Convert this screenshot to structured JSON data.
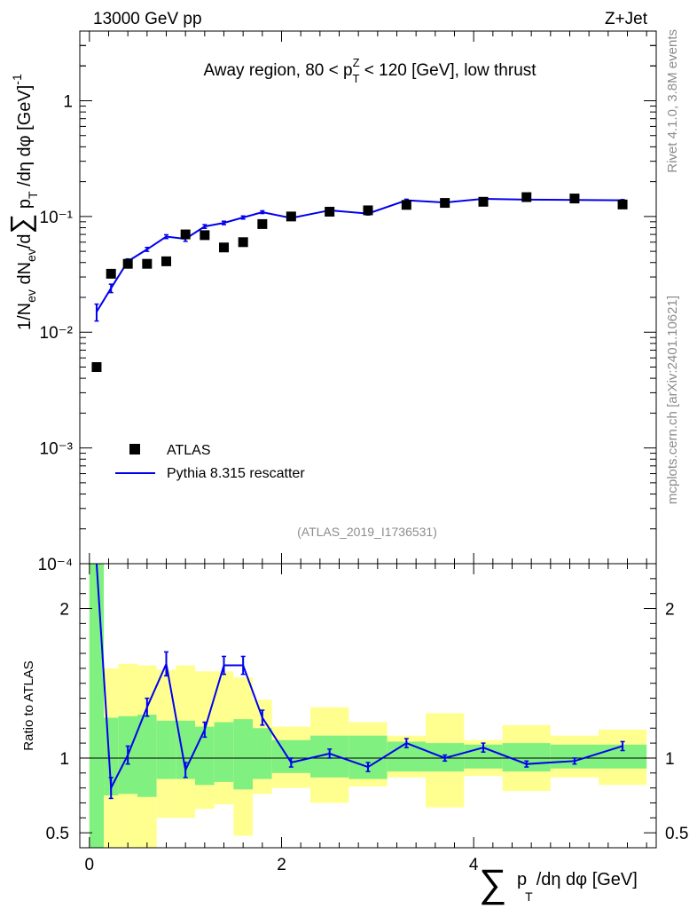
{
  "header": {
    "left": "13000 GeV pp",
    "right": "Z+Jet",
    "side_top": "Rivet 4.1.0,  3.8M events",
    "side_bottom": "mcplots.cern.ch [arXiv:2401.10621]"
  },
  "chart_data": {
    "type": "line",
    "title": "Away region, 80 < pZT < 120 [GeV], low thrust",
    "title_parts": {
      "pre": "Away region, 80 < p",
      "sup": "Z",
      "sub": "T",
      "post": " < 120 [GeV], low thrust"
    },
    "analysis_id": "(ATLAS_2019_I1736531)",
    "xlabel": "∑ pT/dη dφ [GeV]",
    "ylabel": "1/Nev dNev/d∑ pT/dη dφ [GeV]-1",
    "ratio_ylabel": "Ratio to ATLAS",
    "xlim": [
      -0.1,
      5.9
    ],
    "ylim": [
      0.0001,
      4
    ],
    "yscale": "log",
    "ratio_ylim": [
      0.4,
      2.3
    ],
    "x_ticks": [
      "0",
      "2",
      "4"
    ],
    "y_ticks": [
      "10⁻⁴",
      "10⁻³",
      "10⁻²",
      "10⁻¹",
      "1"
    ],
    "ratio_ticks": [
      "0.5",
      "1",
      "2"
    ],
    "legend": [
      "ATLAS",
      "Pythia 8.315 rescatter"
    ],
    "legend_position": "lower-left",
    "colors": {
      "data": "#000000",
      "mc": "#0000ee",
      "band_inner": "#80f080",
      "band_outer": "#ffff90"
    },
    "bin_edges": [
      0.0,
      0.15,
      0.3,
      0.5,
      0.7,
      0.9,
      1.1,
      1.3,
      1.5,
      1.7,
      1.9,
      2.3,
      2.7,
      3.1,
      3.5,
      3.9,
      4.3,
      4.8,
      5.3,
      5.8
    ],
    "series": [
      {
        "name": "ATLAS",
        "marker": "square",
        "x": [
          0.075,
          0.225,
          0.4,
          0.6,
          0.8,
          1.0,
          1.2,
          1.4,
          1.6,
          1.8,
          2.1,
          2.5,
          2.9,
          3.3,
          3.7,
          4.1,
          4.55,
          5.05,
          5.55
        ],
        "values": [
          0.005,
          0.032,
          0.039,
          0.039,
          0.041,
          0.07,
          0.069,
          0.054,
          0.06,
          0.086,
          0.1,
          0.11,
          0.113,
          0.126,
          0.131,
          0.134,
          0.147,
          0.143,
          0.127
        ]
      },
      {
        "name": "Pythia 8.315 rescatter",
        "marker": "line",
        "x": [
          0.075,
          0.225,
          0.4,
          0.6,
          0.8,
          1.0,
          1.2,
          1.4,
          1.6,
          1.8,
          2.1,
          2.5,
          2.9,
          3.3,
          3.7,
          4.1,
          4.55,
          5.05,
          5.55
        ],
        "values": [
          0.015,
          0.024,
          0.041,
          0.052,
          0.067,
          0.064,
          0.082,
          0.088,
          0.098,
          0.109,
          0.097,
          0.113,
          0.106,
          0.138,
          0.132,
          0.142,
          0.14,
          0.139,
          0.138
        ],
        "errors": [
          0.0025,
          0.002,
          0.002,
          0.002,
          0.0025,
          0.003,
          0.003,
          0.003,
          0.003,
          0.003,
          0.002,
          0.003,
          0.003,
          0.003,
          0.002,
          0.002,
          0.002,
          0.002,
          0.002
        ]
      }
    ],
    "ratio": {
      "x": [
        0.075,
        0.225,
        0.4,
        0.6,
        0.8,
        1.0,
        1.2,
        1.4,
        1.6,
        1.8,
        2.1,
        2.5,
        2.9,
        3.3,
        3.7,
        4.1,
        4.55,
        5.05,
        5.55
      ],
      "values": [
        2.9,
        0.8,
        1.02,
        1.34,
        1.63,
        0.92,
        1.19,
        1.62,
        1.62,
        1.27,
        0.97,
        1.03,
        0.94,
        1.1,
        1.0,
        1.07,
        0.96,
        0.98,
        1.08
      ],
      "errors": [
        0.15,
        0.07,
        0.06,
        0.06,
        0.08,
        0.05,
        0.05,
        0.06,
        0.06,
        0.05,
        0.03,
        0.03,
        0.03,
        0.03,
        0.02,
        0.03,
        0.02,
        0.02,
        0.03
      ],
      "band_inner": [
        [
          0.1,
          6.0
        ],
        [
          0.75,
          1.27
        ],
        [
          0.76,
          1.28
        ],
        [
          0.74,
          1.29
        ],
        [
          0.86,
          1.25
        ],
        [
          0.86,
          1.25
        ],
        [
          0.82,
          1.21
        ],
        [
          0.84,
          1.24
        ],
        [
          0.79,
          1.26
        ],
        [
          0.86,
          1.2
        ],
        [
          0.9,
          1.12
        ],
        [
          0.87,
          1.15
        ],
        [
          0.86,
          1.15
        ],
        [
          0.91,
          1.11
        ],
        [
          0.91,
          1.1
        ],
        [
          0.93,
          1.09
        ],
        [
          0.91,
          1.1
        ],
        [
          0.93,
          1.09
        ],
        [
          0.93,
          1.09
        ]
      ],
      "band_outer": [
        [
          0.1,
          6.0
        ],
        [
          0.4,
          1.6
        ],
        [
          0.39,
          1.63
        ],
        [
          0.38,
          1.62
        ],
        [
          0.6,
          1.59
        ],
        [
          0.6,
          1.62
        ],
        [
          0.66,
          1.58
        ],
        [
          0.69,
          1.58
        ],
        [
          0.48,
          1.54
        ],
        [
          0.76,
          1.39
        ],
        [
          0.8,
          1.21
        ],
        [
          0.7,
          1.34
        ],
        [
          0.81,
          1.24
        ],
        [
          0.87,
          1.15
        ],
        [
          0.67,
          1.3
        ],
        [
          0.88,
          1.12
        ],
        [
          0.78,
          1.22
        ],
        [
          0.87,
          1.15
        ],
        [
          0.82,
          1.19
        ]
      ]
    }
  }
}
